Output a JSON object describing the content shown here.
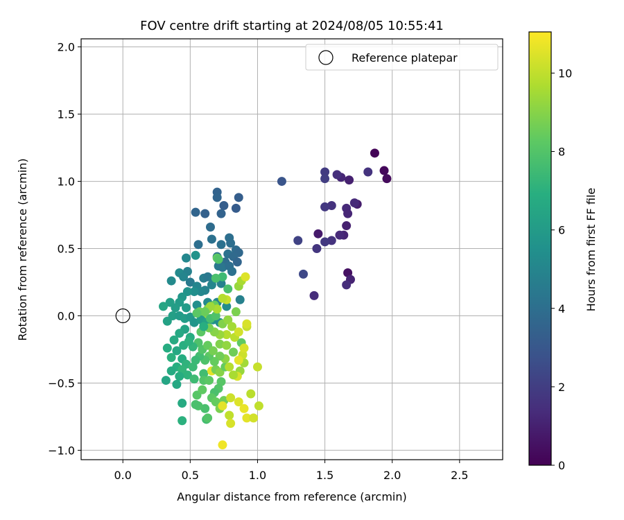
{
  "chart_data": {
    "type": "scatter",
    "title": "FOV centre drift starting at 2024/08/05 10:55:41",
    "xlabel": "Angular distance from reference (arcmin)",
    "ylabel": "Rotation from reference (arcmin)",
    "xlim": [
      -0.31,
      2.82
    ],
    "ylim": [
      -1.07,
      2.06
    ],
    "xticks": [
      "0.0",
      "0.5",
      "1.0",
      "1.5",
      "2.0",
      "2.5"
    ],
    "yticks": [
      "−1.0",
      "−0.5",
      "0.0",
      "0.5",
      "1.0",
      "1.5",
      "2.0"
    ],
    "grid": true,
    "legend": {
      "position": "top-right",
      "label": "Reference platepar"
    },
    "reference_point": {
      "x": 0.0,
      "y": 0.0
    },
    "colorbar": {
      "label": "Hours from first FF file",
      "min": 0,
      "max": 11.05,
      "ticks": [
        "0",
        "2",
        "4",
        "6",
        "8",
        "10"
      ],
      "colormap": "viridis"
    },
    "points": [
      {
        "x": 1.87,
        "y": 1.21,
        "h": 0.1
      },
      {
        "x": 1.94,
        "y": 1.08,
        "h": 0.2
      },
      {
        "x": 1.96,
        "y": 1.02,
        "h": 0.3
      },
      {
        "x": 1.67,
        "y": 0.32,
        "h": 0.5
      },
      {
        "x": 1.69,
        "y": 0.27,
        "h": 1.1
      },
      {
        "x": 1.66,
        "y": 0.23,
        "h": 1.4
      },
      {
        "x": 1.74,
        "y": 0.83,
        "h": 0.9
      },
      {
        "x": 1.72,
        "y": 0.84,
        "h": 1.3
      },
      {
        "x": 1.68,
        "y": 1.01,
        "h": 1.0
      },
      {
        "x": 1.62,
        "y": 1.03,
        "h": 1.2
      },
      {
        "x": 1.59,
        "y": 1.05,
        "h": 1.5
      },
      {
        "x": 1.5,
        "y": 1.07,
        "h": 1.9
      },
      {
        "x": 1.5,
        "y": 1.02,
        "h": 2.0
      },
      {
        "x": 1.82,
        "y": 1.07,
        "h": 1.6
      },
      {
        "x": 1.55,
        "y": 0.82,
        "h": 1.6
      },
      {
        "x": 1.5,
        "y": 0.81,
        "h": 1.8
      },
      {
        "x": 1.66,
        "y": 0.8,
        "h": 1.3
      },
      {
        "x": 1.67,
        "y": 0.76,
        "h": 1.2
      },
      {
        "x": 1.66,
        "y": 0.67,
        "h": 1.0
      },
      {
        "x": 1.64,
        "y": 0.6,
        "h": 1.1
      },
      {
        "x": 1.61,
        "y": 0.6,
        "h": 1.3
      },
      {
        "x": 1.55,
        "y": 0.56,
        "h": 1.6
      },
      {
        "x": 1.5,
        "y": 0.55,
        "h": 1.8
      },
      {
        "x": 1.45,
        "y": 0.61,
        "h": 0.8
      },
      {
        "x": 1.44,
        "y": 0.5,
        "h": 1.7
      },
      {
        "x": 1.3,
        "y": 0.56,
        "h": 2.2
      },
      {
        "x": 1.34,
        "y": 0.31,
        "h": 2.4
      },
      {
        "x": 1.42,
        "y": 0.15,
        "h": 1.4
      },
      {
        "x": 1.18,
        "y": 1.0,
        "h": 2.9
      },
      {
        "x": 0.7,
        "y": 0.92,
        "h": 3.5
      },
      {
        "x": 0.7,
        "y": 0.88,
        "h": 3.6
      },
      {
        "x": 0.86,
        "y": 0.88,
        "h": 3.3
      },
      {
        "x": 0.75,
        "y": 0.82,
        "h": 3.3
      },
      {
        "x": 0.84,
        "y": 0.8,
        "h": 3.2
      },
      {
        "x": 0.54,
        "y": 0.77,
        "h": 3.6
      },
      {
        "x": 0.61,
        "y": 0.76,
        "h": 3.4
      },
      {
        "x": 0.73,
        "y": 0.76,
        "h": 3.5
      },
      {
        "x": 0.65,
        "y": 0.66,
        "h": 3.9
      },
      {
        "x": 0.79,
        "y": 0.58,
        "h": 4.0
      },
      {
        "x": 0.66,
        "y": 0.57,
        "h": 4.1
      },
      {
        "x": 0.56,
        "y": 0.53,
        "h": 4.0
      },
      {
        "x": 0.73,
        "y": 0.53,
        "h": 4.1
      },
      {
        "x": 0.8,
        "y": 0.54,
        "h": 4.0
      },
      {
        "x": 0.84,
        "y": 0.49,
        "h": 3.9
      },
      {
        "x": 0.86,
        "y": 0.47,
        "h": 3.7
      },
      {
        "x": 0.78,
        "y": 0.46,
        "h": 4.1
      },
      {
        "x": 0.7,
        "y": 0.44,
        "h": 4.2
      },
      {
        "x": 0.82,
        "y": 0.44,
        "h": 3.8
      },
      {
        "x": 0.85,
        "y": 0.4,
        "h": 3.6
      },
      {
        "x": 0.76,
        "y": 0.4,
        "h": 3.9
      },
      {
        "x": 0.71,
        "y": 0.37,
        "h": 4.4
      },
      {
        "x": 0.74,
        "y": 0.36,
        "h": 4.3
      },
      {
        "x": 0.79,
        "y": 0.37,
        "h": 4.0
      },
      {
        "x": 0.81,
        "y": 0.33,
        "h": 4.1
      },
      {
        "x": 0.47,
        "y": 0.43,
        "h": 5.1
      },
      {
        "x": 0.54,
        "y": 0.45,
        "h": 5.6
      },
      {
        "x": 0.42,
        "y": 0.32,
        "h": 5.2
      },
      {
        "x": 0.48,
        "y": 0.33,
        "h": 4.8
      },
      {
        "x": 0.45,
        "y": 0.29,
        "h": 5.0
      },
      {
        "x": 0.36,
        "y": 0.26,
        "h": 5.2
      },
      {
        "x": 0.5,
        "y": 0.25,
        "h": 4.5
      },
      {
        "x": 0.55,
        "y": 0.22,
        "h": 5.0
      },
      {
        "x": 0.6,
        "y": 0.28,
        "h": 4.7
      },
      {
        "x": 0.63,
        "y": 0.29,
        "h": 4.4
      },
      {
        "x": 0.67,
        "y": 0.27,
        "h": 4.6
      },
      {
        "x": 0.73,
        "y": 0.24,
        "h": 4.8
      },
      {
        "x": 0.66,
        "y": 0.23,
        "h": 5.0
      },
      {
        "x": 0.61,
        "y": 0.19,
        "h": 4.9
      },
      {
        "x": 0.58,
        "y": 0.18,
        "h": 5.1
      },
      {
        "x": 0.53,
        "y": 0.18,
        "h": 5.4
      },
      {
        "x": 0.48,
        "y": 0.18,
        "h": 5.6
      },
      {
        "x": 0.44,
        "y": 0.14,
        "h": 5.8
      },
      {
        "x": 0.42,
        "y": 0.1,
        "h": 6.0
      },
      {
        "x": 0.35,
        "y": 0.1,
        "h": 6.2
      },
      {
        "x": 0.3,
        "y": 0.07,
        "h": 6.5
      },
      {
        "x": 0.39,
        "y": 0.06,
        "h": 6.1
      },
      {
        "x": 0.47,
        "y": 0.06,
        "h": 6.0
      },
      {
        "x": 0.55,
        "y": 0.08,
        "h": 5.4
      },
      {
        "x": 0.63,
        "y": 0.1,
        "h": 5.2
      },
      {
        "x": 0.7,
        "y": 0.1,
        "h": 5.0
      },
      {
        "x": 0.77,
        "y": 0.07,
        "h": 5.3
      },
      {
        "x": 0.87,
        "y": 0.12,
        "h": 4.8
      },
      {
        "x": 0.78,
        "y": 0.2,
        "h": 7.8
      },
      {
        "x": 0.74,
        "y": 0.29,
        "h": 7.5
      },
      {
        "x": 0.69,
        "y": 0.28,
        "h": 7.8
      },
      {
        "x": 0.7,
        "y": 0.43,
        "h": 8.3
      },
      {
        "x": 0.71,
        "y": 0.42,
        "h": 8.0
      },
      {
        "x": 0.86,
        "y": 0.22,
        "h": 9.3
      },
      {
        "x": 0.88,
        "y": 0.26,
        "h": 9.6
      },
      {
        "x": 0.91,
        "y": 0.29,
        "h": 10.5
      },
      {
        "x": 0.77,
        "y": 0.12,
        "h": 10.1
      },
      {
        "x": 0.74,
        "y": 0.13,
        "h": 9.8
      },
      {
        "x": 0.84,
        "y": 0.03,
        "h": 8.8
      },
      {
        "x": 0.68,
        "y": 0.08,
        "h": 8.4
      },
      {
        "x": 0.63,
        "y": 0.05,
        "h": 8.9
      },
      {
        "x": 0.6,
        "y": 0.01,
        "h": 9.1
      },
      {
        "x": 0.57,
        "y": 0.03,
        "h": 8.6
      },
      {
        "x": 0.33,
        "y": -0.04,
        "h": 6.3
      },
      {
        "x": 0.37,
        "y": 0.0,
        "h": 6.2
      },
      {
        "x": 0.42,
        "y": 0.0,
        "h": 6.0
      },
      {
        "x": 0.46,
        "y": -0.02,
        "h": 6.1
      },
      {
        "x": 0.5,
        "y": -0.01,
        "h": 5.9
      },
      {
        "x": 0.53,
        "y": -0.05,
        "h": 5.7
      },
      {
        "x": 0.58,
        "y": -0.03,
        "h": 6.0
      },
      {
        "x": 0.62,
        "y": -0.05,
        "h": 6.3
      },
      {
        "x": 0.67,
        "y": -0.03,
        "h": 5.6
      },
      {
        "x": 0.72,
        "y": -0.05,
        "h": 5.3
      },
      {
        "x": 0.46,
        "y": -0.1,
        "h": 6.4
      },
      {
        "x": 0.42,
        "y": -0.13,
        "h": 6.6
      },
      {
        "x": 0.5,
        "y": -0.16,
        "h": 6.8
      },
      {
        "x": 0.38,
        "y": -0.18,
        "h": 6.7
      },
      {
        "x": 0.45,
        "y": -0.22,
        "h": 6.9
      },
      {
        "x": 0.33,
        "y": -0.24,
        "h": 6.8
      },
      {
        "x": 0.4,
        "y": -0.26,
        "h": 6.6
      },
      {
        "x": 0.36,
        "y": -0.31,
        "h": 7.0
      },
      {
        "x": 0.44,
        "y": -0.32,
        "h": 6.8
      },
      {
        "x": 0.47,
        "y": -0.36,
        "h": 7.1
      },
      {
        "x": 0.4,
        "y": -0.38,
        "h": 6.9
      },
      {
        "x": 0.36,
        "y": -0.41,
        "h": 6.7
      },
      {
        "x": 0.44,
        "y": -0.4,
        "h": 7.2
      },
      {
        "x": 0.52,
        "y": -0.38,
        "h": 7.4
      },
      {
        "x": 0.48,
        "y": -0.44,
        "h": 7.1
      },
      {
        "x": 0.42,
        "y": -0.45,
        "h": 6.8
      },
      {
        "x": 0.32,
        "y": -0.48,
        "h": 6.5
      },
      {
        "x": 0.4,
        "y": -0.51,
        "h": 6.6
      },
      {
        "x": 0.53,
        "y": -0.47,
        "h": 7.5
      },
      {
        "x": 0.6,
        "y": -0.43,
        "h": 7.6
      },
      {
        "x": 0.44,
        "y": -0.65,
        "h": 6.7
      },
      {
        "x": 0.44,
        "y": -0.78,
        "h": 7.0
      },
      {
        "x": 0.62,
        "y": -0.77,
        "h": 7.6
      },
      {
        "x": 0.61,
        "y": -0.69,
        "h": 7.8
      },
      {
        "x": 0.56,
        "y": -0.67,
        "h": 7.9
      },
      {
        "x": 0.54,
        "y": -0.66,
        "h": 7.8
      },
      {
        "x": 0.63,
        "y": -0.76,
        "h": 8.0
      },
      {
        "x": 0.55,
        "y": -0.59,
        "h": 8.1
      },
      {
        "x": 0.59,
        "y": -0.55,
        "h": 8.3
      },
      {
        "x": 0.6,
        "y": -0.48,
        "h": 8.0
      },
      {
        "x": 0.64,
        "y": -0.48,
        "h": 8.2
      },
      {
        "x": 0.66,
        "y": -0.41,
        "h": 10.6
      },
      {
        "x": 0.69,
        "y": -0.4,
        "h": 8.7
      },
      {
        "x": 0.72,
        "y": -0.42,
        "h": 9.0
      },
      {
        "x": 0.76,
        "y": -0.38,
        "h": 8.4
      },
      {
        "x": 0.73,
        "y": -0.49,
        "h": 8.1
      },
      {
        "x": 0.71,
        "y": -0.54,
        "h": 8.0
      },
      {
        "x": 0.68,
        "y": -0.57,
        "h": 7.8
      },
      {
        "x": 0.66,
        "y": -0.61,
        "h": 8.2
      },
      {
        "x": 0.69,
        "y": -0.64,
        "h": 8.4
      },
      {
        "x": 0.75,
        "y": -0.63,
        "h": 8.6
      },
      {
        "x": 0.72,
        "y": -0.69,
        "h": 8.8
      },
      {
        "x": 0.74,
        "y": -0.67,
        "h": 10.6
      },
      {
        "x": 0.79,
        "y": -0.74,
        "h": 10.0
      },
      {
        "x": 0.8,
        "y": -0.8,
        "h": 10.4
      },
      {
        "x": 0.74,
        "y": -0.96,
        "h": 10.8
      },
      {
        "x": 0.8,
        "y": -0.61,
        "h": 10.2
      },
      {
        "x": 0.86,
        "y": -0.64,
        "h": 10.5
      },
      {
        "x": 0.9,
        "y": -0.69,
        "h": 10.7
      },
      {
        "x": 0.92,
        "y": -0.76,
        "h": 10.6
      },
      {
        "x": 0.97,
        "y": -0.76,
        "h": 10.3
      },
      {
        "x": 1.01,
        "y": -0.67,
        "h": 10.0
      },
      {
        "x": 0.95,
        "y": -0.58,
        "h": 9.9
      },
      {
        "x": 1.0,
        "y": -0.38,
        "h": 10.1
      },
      {
        "x": 0.9,
        "y": -0.35,
        "h": 9.5
      },
      {
        "x": 0.87,
        "y": -0.41,
        "h": 9.3
      },
      {
        "x": 0.85,
        "y": -0.45,
        "h": 10.4
      },
      {
        "x": 0.82,
        "y": -0.44,
        "h": 9.6
      },
      {
        "x": 0.79,
        "y": -0.38,
        "h": 9.8
      },
      {
        "x": 0.76,
        "y": -0.32,
        "h": 9.1
      },
      {
        "x": 0.72,
        "y": -0.3,
        "h": 8.6
      },
      {
        "x": 0.68,
        "y": -0.34,
        "h": 8.4
      },
      {
        "x": 0.64,
        "y": -0.3,
        "h": 8.2
      },
      {
        "x": 0.61,
        "y": -0.33,
        "h": 7.9
      },
      {
        "x": 0.57,
        "y": -0.3,
        "h": 7.6
      },
      {
        "x": 0.54,
        "y": -0.33,
        "h": 7.4
      },
      {
        "x": 0.59,
        "y": -0.25,
        "h": 8.0
      },
      {
        "x": 0.63,
        "y": -0.22,
        "h": 8.4
      },
      {
        "x": 0.67,
        "y": -0.26,
        "h": 8.7
      },
      {
        "x": 0.72,
        "y": -0.21,
        "h": 8.9
      },
      {
        "x": 0.77,
        "y": -0.22,
        "h": 9.2
      },
      {
        "x": 0.82,
        "y": -0.27,
        "h": 8.6
      },
      {
        "x": 0.88,
        "y": -0.2,
        "h": 8.3
      },
      {
        "x": 0.89,
        "y": -0.29,
        "h": 10.2
      },
      {
        "x": 0.9,
        "y": -0.24,
        "h": 10.4
      },
      {
        "x": 0.86,
        "y": -0.33,
        "h": 10.6
      },
      {
        "x": 0.92,
        "y": -0.08,
        "h": 10.1
      },
      {
        "x": 0.92,
        "y": -0.06,
        "h": 10.4
      },
      {
        "x": 0.77,
        "y": -0.14,
        "h": 9.8
      },
      {
        "x": 0.72,
        "y": -0.14,
        "h": 9.3
      },
      {
        "x": 0.68,
        "y": -0.12,
        "h": 9.0
      },
      {
        "x": 0.64,
        "y": -0.09,
        "h": 8.7
      },
      {
        "x": 0.58,
        "y": -0.12,
        "h": 8.2
      },
      {
        "x": 0.56,
        "y": -0.2,
        "h": 7.9
      },
      {
        "x": 0.52,
        "y": -0.23,
        "h": 7.2
      },
      {
        "x": 0.49,
        "y": -0.19,
        "h": 7.0
      },
      {
        "x": 0.6,
        "y": -0.08,
        "h": 6.9
      },
      {
        "x": 0.65,
        "y": -0.02,
        "h": 7.7
      },
      {
        "x": 0.69,
        "y": 0.0,
        "h": 7.9
      },
      {
        "x": 0.74,
        "y": -0.06,
        "h": 8.9
      },
      {
        "x": 0.78,
        "y": -0.03,
        "h": 9.2
      },
      {
        "x": 0.81,
        "y": -0.08,
        "h": 9.5
      },
      {
        "x": 0.83,
        "y": -0.16,
        "h": 9.9
      },
      {
        "x": 0.86,
        "y": -0.12,
        "h": 10.3
      },
      {
        "x": 0.7,
        "y": 0.05,
        "h": 9.6
      },
      {
        "x": 0.65,
        "y": 0.07,
        "h": 9.4
      },
      {
        "x": 0.61,
        "y": 0.03,
        "h": 8.5
      },
      {
        "x": 0.55,
        "y": 0.02,
        "h": 8.2
      }
    ]
  }
}
